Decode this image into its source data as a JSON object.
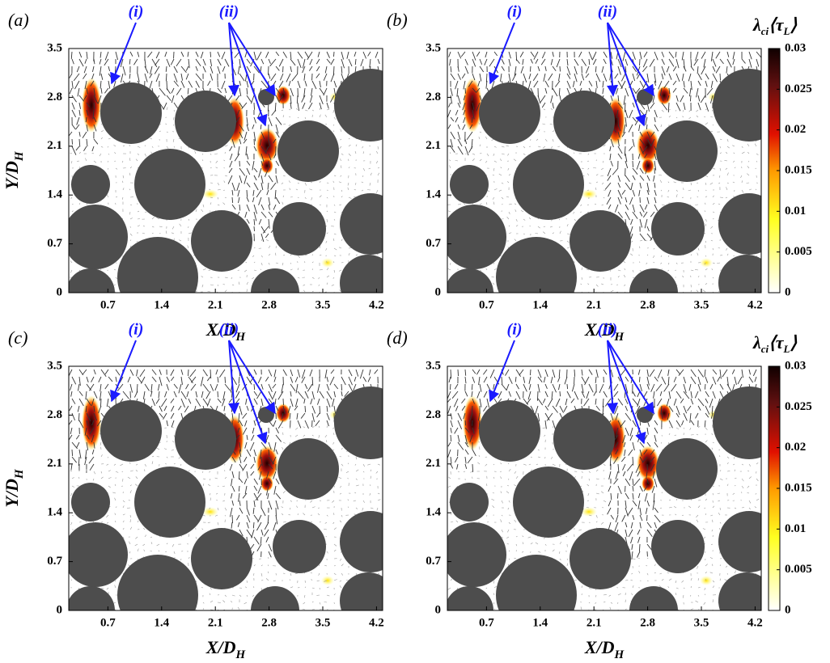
{
  "chart_data": [
    {
      "type": "quiver",
      "panel_label": "(a)",
      "xlabel": {
        "text": "X/D",
        "sub": "H"
      },
      "ylabel": {
        "text": "Y/D",
        "sub": "H"
      },
      "xlim": [
        0.19,
        4.28
      ],
      "ylim": [
        0,
        3.5
      ],
      "xticks": [
        0.7,
        1.4,
        2.1,
        2.8,
        3.5,
        4.2
      ],
      "yticks": [
        0,
        0.7,
        1.4,
        2.1,
        2.8,
        3.5
      ],
      "annotations": [
        "(i)",
        "(ii)"
      ]
    },
    {
      "type": "quiver",
      "panel_label": "(b)",
      "xlabel": {
        "text": "X/D",
        "sub": "H"
      },
      "xlim": [
        0.19,
        4.28
      ],
      "ylim": [
        0,
        3.5
      ],
      "xticks": [
        0.7,
        1.4,
        2.1,
        2.8,
        3.5,
        4.2
      ],
      "yticks": [
        0,
        0.7,
        1.4,
        2.1,
        2.8,
        3.5
      ],
      "annotations": [
        "(i)",
        "(ii)"
      ],
      "colorbar": {
        "label_parts": [
          "λ",
          "ci",
          "⟨τ",
          "L",
          "⟩"
        ],
        "lim": [
          0,
          0.03
        ],
        "ticks": [
          0,
          0.005,
          0.01,
          0.015,
          0.02,
          0.025,
          0.03
        ]
      }
    },
    {
      "type": "quiver",
      "panel_label": "(c)",
      "xlabel": {
        "text": "X/D",
        "sub": "H"
      },
      "ylabel": {
        "text": "Y/D",
        "sub": "H"
      },
      "xlim": [
        0.19,
        4.28
      ],
      "ylim": [
        0,
        3.5
      ],
      "xticks": [
        0.7,
        1.4,
        2.1,
        2.8,
        3.5,
        4.2
      ],
      "yticks": [
        0,
        0.7,
        1.4,
        2.1,
        2.8,
        3.5
      ],
      "annotations": [
        "(i)",
        "(ii)"
      ]
    },
    {
      "type": "quiver",
      "panel_label": "(d)",
      "xlabel": {
        "text": "X/D",
        "sub": "H"
      },
      "xlim": [
        0.19,
        4.28
      ],
      "ylim": [
        0,
        3.5
      ],
      "xticks": [
        0.7,
        1.4,
        2.1,
        2.8,
        3.5,
        4.2
      ],
      "yticks": [
        0,
        0.7,
        1.4,
        2.1,
        2.8,
        3.5
      ],
      "annotations": [
        "(i)",
        "(ii)"
      ],
      "colorbar": {
        "label_parts": [
          "λ",
          "ci",
          "⟨τ",
          "L",
          "⟩"
        ],
        "lim": [
          0,
          0.03
        ],
        "ticks": [
          0,
          0.005,
          0.01,
          0.015,
          0.02,
          0.025,
          0.03
        ]
      }
    }
  ]
}
